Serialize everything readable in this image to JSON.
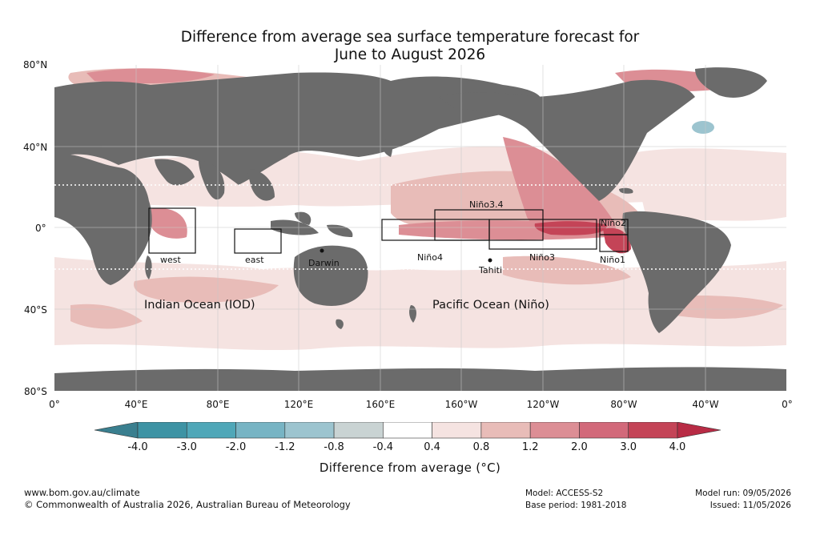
{
  "title_line1": "Difference from average sea surface temperature forecast for",
  "title_line2": "June to August 2026",
  "lat_labels": [
    "80°N",
    "40°N",
    "0°",
    "40°S",
    "80°S"
  ],
  "lon_labels": [
    "0°",
    "40°E",
    "80°E",
    "120°E",
    "160°E",
    "160°W",
    "120°W",
    "80°W",
    "40°W",
    "0°"
  ],
  "ocean_labels": {
    "indian": "Indian Ocean (IOD)",
    "pacific": "Pacific Ocean (Niño)"
  },
  "region_labels": {
    "west": "west",
    "east": "east",
    "nino34": "Niño3.4",
    "nino4": "Niño4",
    "nino3": "Niño3",
    "nino2": "Niño2",
    "nino1": "Niño1"
  },
  "places": {
    "darwin": "Darwin",
    "tahiti": "Tahiti"
  },
  "colorbar": {
    "ticks": [
      "-4.0",
      "-3.0",
      "-2.0",
      "-1.2",
      "-0.8",
      "-0.4",
      "0.4",
      "0.8",
      "1.2",
      "2.0",
      "3.0",
      "4.0"
    ],
    "colors": [
      "#3d93a4",
      "#4fa7b8",
      "#77b4c4",
      "#9cc4cf",
      "#c9d3d3",
      "#ffffff",
      "#f5e3e1",
      "#e8bcb8",
      "#dc8e95",
      "#d2697a",
      "#c44457"
    ],
    "under_color": "#3a7f8f",
    "over_color": "#b82b45",
    "label": "Difference from average (°C)"
  },
  "footer": {
    "url": "www.bom.gov.au/climate",
    "copyright": "© Commonwealth of Australia 2026, Australian Bureau of Meteorology",
    "model": "Model: ACCESS-S2",
    "base_period": "Base period: 1981-2018",
    "model_run": "Model run: 09/05/2026",
    "issued": "Issued: 11/05/2026"
  },
  "colors": {
    "land": "#6b6b6b",
    "ocean_neutral": "#ffffff",
    "grid": "#bdbdbd"
  }
}
